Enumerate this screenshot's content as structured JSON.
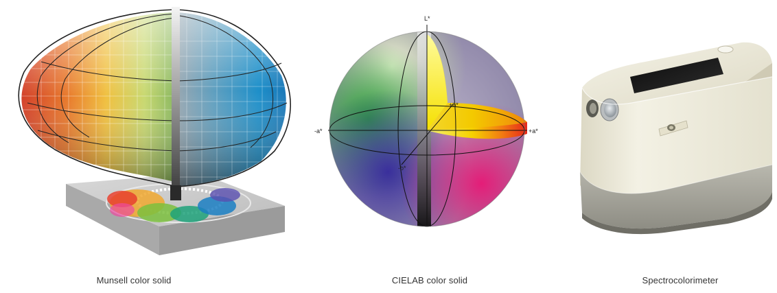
{
  "colors": {
    "background": "#ffffff",
    "caption_text": "#333333",
    "base_plate": "#c9c9c9",
    "device_body": "#e9e6d4",
    "device_display": "#1e1e1e"
  },
  "figures": [
    {
      "id": "munsell",
      "icon": "munsell-color-solid-illustration",
      "caption": "Munsell color solid"
    },
    {
      "id": "cielab",
      "icon": "cielab-color-solid-illustration",
      "caption": "CIELAB color solid",
      "axes": {
        "l_star": "L*",
        "minus_a": "-a*",
        "plus_a": "+a*",
        "plus_b": "+b*",
        "minus_b": "-b*"
      }
    },
    {
      "id": "spectro",
      "icon": "spectrocolorimeter-device-illustration",
      "caption": "Spectrocolorimeter"
    }
  ]
}
